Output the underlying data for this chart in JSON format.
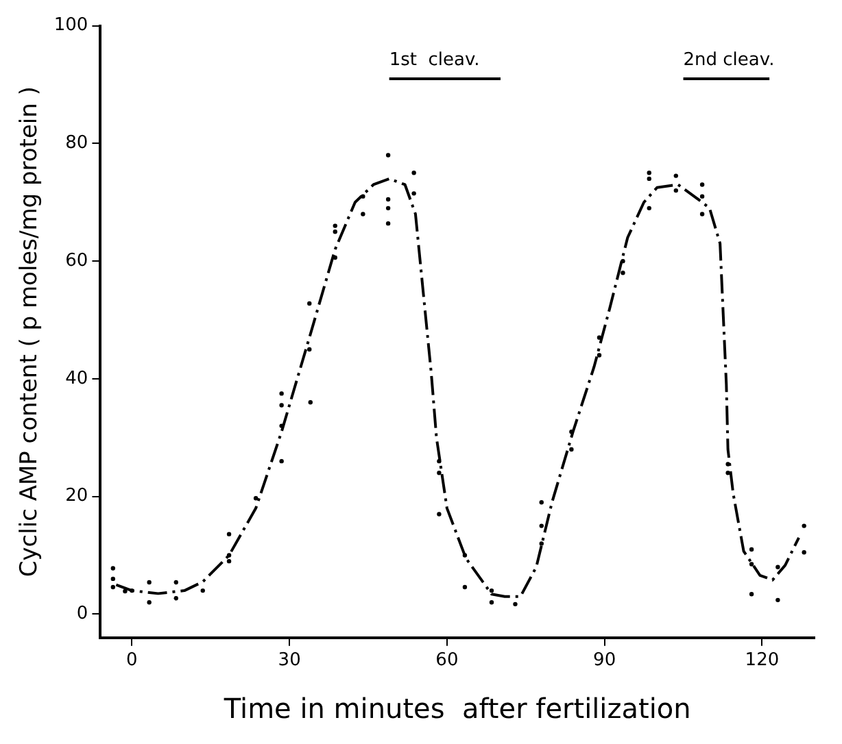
{
  "chart_data": {
    "type": "line",
    "xlabel": "Time in minutes  after fertilization",
    "ylabel": "Cyclic AMP content ( p moles/mg protein )",
    "xlim": [
      -6,
      130
    ],
    "xticks": [
      0,
      30,
      60,
      90,
      120
    ],
    "ylim": [
      -4,
      100
    ],
    "yticks": [
      0,
      20,
      40,
      60,
      80,
      100
    ],
    "grid": false,
    "legend": false,
    "series": [
      {
        "type": "line",
        "color": "#000000",
        "marker": "none",
        "line_style": "dashed",
        "x": [
          -3,
          0,
          5,
          10,
          13.5,
          18.5,
          23.6,
          28.5,
          33.8,
          38.7,
          42.5,
          46,
          49,
          52,
          54,
          57,
          58,
          60,
          63.6,
          68.5,
          71,
          74,
          77,
          80,
          84,
          88,
          91,
          94.4,
          97.5,
          100,
          104,
          108.6,
          110,
          112,
          113.2,
          113.5,
          114.5,
          116.5,
          119.6,
          122,
          124.4,
          127
        ],
        "values": [
          5,
          4,
          3.5,
          4,
          5.5,
          10,
          18,
          31,
          47,
          62,
          70,
          73,
          74,
          73,
          68,
          41,
          30,
          18,
          9.5,
          3.4,
          3,
          3,
          8,
          19,
          31,
          42,
          52,
          64,
          70,
          72.5,
          73,
          70,
          69,
          63,
          39,
          28,
          20.5,
          10.7,
          6.6,
          5.8,
          8.3,
          13
        ]
      },
      {
        "type": "scatter",
        "color": "#000000",
        "marker": "circle",
        "x": [
          -3.6,
          -3.6,
          -3.6,
          -1.3,
          0,
          3.3,
          3.3,
          8.4,
          8.4,
          13.5,
          18.5,
          18.5,
          18.5,
          23.6,
          28.5,
          28.5,
          28.5,
          28.5,
          34,
          33.8,
          33.8,
          38.7,
          38.7,
          38.7,
          44,
          44,
          48.8,
          48.8,
          48.8,
          48.8,
          53.7,
          53.7,
          58.5,
          58.5,
          58.5,
          63.4,
          63.4,
          68.5,
          68.5,
          73,
          78,
          78,
          78,
          83.7,
          83.7,
          89,
          89,
          93.5,
          93.5,
          98.5,
          98.5,
          98.5,
          103.6,
          103.6,
          108.6,
          108.6,
          108.6,
          113.5,
          113.5,
          118,
          118,
          118,
          123,
          123,
          128,
          128
        ],
        "values": [
          7.8,
          6,
          4.6,
          3.9,
          4,
          5.4,
          2,
          5.4,
          2.7,
          4,
          13.6,
          10,
          9,
          19.7,
          37.5,
          35.5,
          32,
          26,
          36,
          52.8,
          45,
          66,
          65,
          60.6,
          71,
          68,
          78,
          70.5,
          69,
          66.4,
          75,
          71.5,
          26,
          24,
          17,
          10,
          4.6,
          4,
          2,
          1.7,
          19,
          15,
          12,
          31,
          28,
          47,
          44,
          60,
          58,
          75,
          74,
          69,
          74.5,
          72,
          73,
          71,
          68,
          25.5,
          24,
          11,
          8.5,
          3.4,
          8,
          2.4,
          15,
          10.5
        ]
      },
      {
        "type": "line",
        "color": "#000000",
        "marker": "none",
        "line_style": "solid",
        "x": [
          49,
          70.2
        ],
        "values": [
          91,
          91
        ]
      },
      {
        "type": "line",
        "color": "#000000",
        "marker": "none",
        "line_style": "solid",
        "x": [
          105,
          121.4
        ],
        "values": [
          91,
          91
        ]
      }
    ],
    "annotations": [
      {
        "text": "1st  cleav.",
        "x": 49,
        "y": 91
      },
      {
        "text": "2nd cleav.",
        "x": 105,
        "y": 91
      }
    ]
  }
}
